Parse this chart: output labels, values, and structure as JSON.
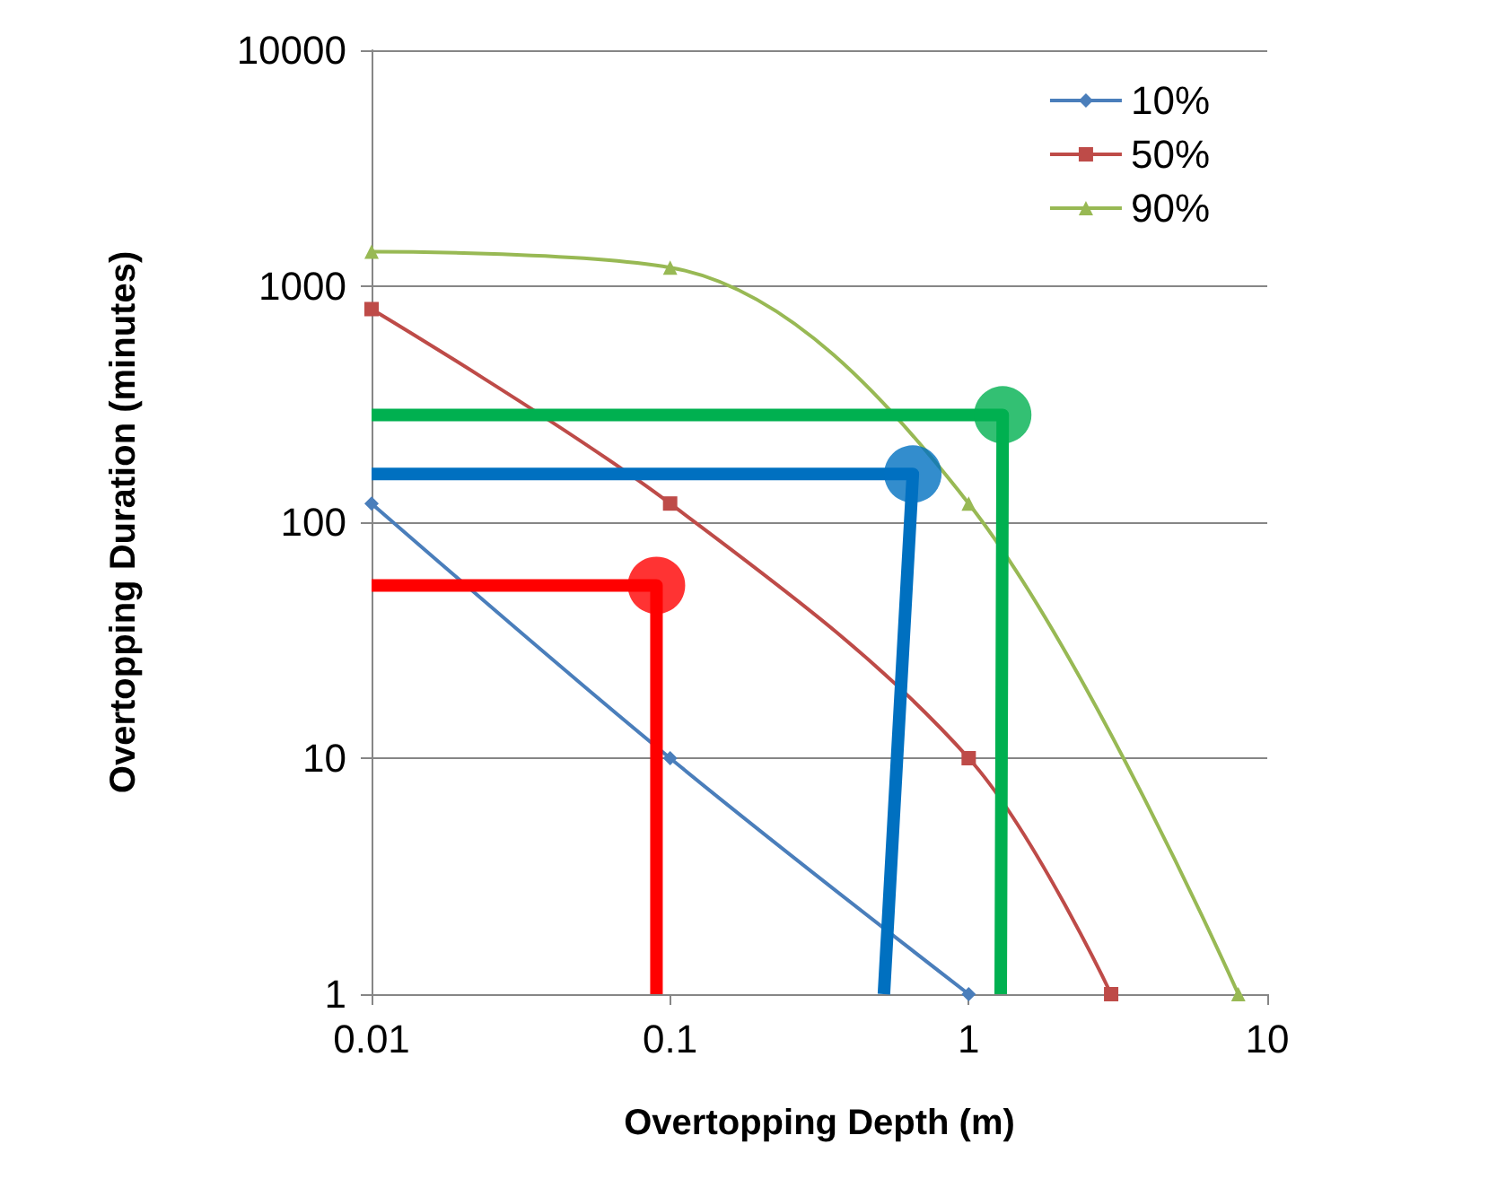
{
  "chart_data": {
    "type": "line",
    "xlabel": "Overtopping Depth (m)",
    "ylabel": "Overtopping Duration (minutes)",
    "log": "xy",
    "xlim": [
      0.01,
      10
    ],
    "ylim": [
      1,
      10000
    ],
    "xticks": [
      0.01,
      0.1,
      1,
      10
    ],
    "yticks": [
      1,
      10,
      100,
      1000,
      10000
    ],
    "grid": "y",
    "legend": "top right",
    "series": [
      {
        "name": "10%",
        "color": "#4a7ebb",
        "marker": "diamond",
        "x": [
          0.01,
          0.1,
          1
        ],
        "values": [
          120,
          10,
          1
        ]
      },
      {
        "name": "50%",
        "color": "#be4b48",
        "marker": "square",
        "x": [
          0.01,
          0.1,
          1,
          3
        ],
        "values": [
          800,
          120,
          10,
          1
        ]
      },
      {
        "name": "90%",
        "color": "#98b954",
        "marker": "triangle",
        "x": [
          0.01,
          0.1,
          1,
          8
        ],
        "values": [
          1400,
          1200,
          120,
          1
        ]
      },
      {
        "color": "#ff0000",
        "marker": "none",
        "x": [
          0.01,
          0.09,
          0.09
        ],
        "values": [
          54,
          54,
          1
        ]
      },
      {
        "type": "scatter",
        "color": "#ff0000",
        "marker": "circle",
        "x": [
          0.09
        ],
        "values": [
          54
        ]
      },
      {
        "color": "#0070c0",
        "marker": "none",
        "x": [
          0.01,
          0.65,
          0.52
        ],
        "values": [
          160,
          160,
          1
        ]
      },
      {
        "type": "scatter",
        "color": "#0070c0",
        "marker": "circle",
        "x": [
          0.65
        ],
        "values": [
          160
        ]
      },
      {
        "color": "#00b050",
        "marker": "none",
        "x": [
          0.01,
          1.3,
          1.28
        ],
        "values": [
          285,
          285,
          1
        ]
      },
      {
        "type": "scatter",
        "color": "#00b050",
        "marker": "circle",
        "x": [
          1.3
        ],
        "values": [
          285
        ]
      }
    ]
  }
}
